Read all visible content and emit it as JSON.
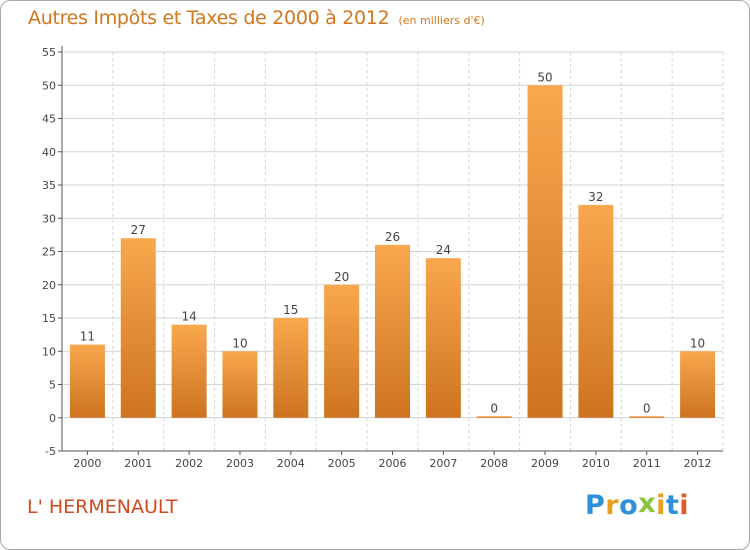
{
  "chart_data": {
    "type": "bar",
    "title": "Autres Impôts et Taxes de 2000 à 2012",
    "subtitle": "(en milliers d'€)",
    "categories": [
      "2000",
      "2001",
      "2002",
      "2003",
      "2004",
      "2005",
      "2006",
      "2007",
      "2008",
      "2009",
      "2010",
      "2011",
      "2012"
    ],
    "values": [
      11,
      27,
      14,
      10,
      15,
      20,
      26,
      24,
      0,
      50,
      32,
      0,
      10
    ],
    "ylim": [
      -5,
      55
    ],
    "yticks": [
      -5,
      0,
      5,
      10,
      15,
      20,
      25,
      30,
      35,
      40,
      45,
      50,
      55
    ],
    "grid": true,
    "bar_color_light": "#f9a84e",
    "bar_color_dark": "#cd7320",
    "grid_color": "#d3d3d3"
  },
  "footer": {
    "town": "L' HERMENAULT",
    "logo_letters": [
      {
        "ch": "P",
        "color": "#2f8fd8"
      },
      {
        "ch": "r",
        "color": "#e8a020"
      },
      {
        "ch": "o",
        "color": "#2f8fd8"
      },
      {
        "ch": "x",
        "color": "#8bc43f"
      },
      {
        "ch": "i",
        "color": "#e8a020"
      },
      {
        "ch": "t",
        "color": "#2f8fd8"
      },
      {
        "ch": "i",
        "color": "#e05a2a"
      }
    ]
  }
}
